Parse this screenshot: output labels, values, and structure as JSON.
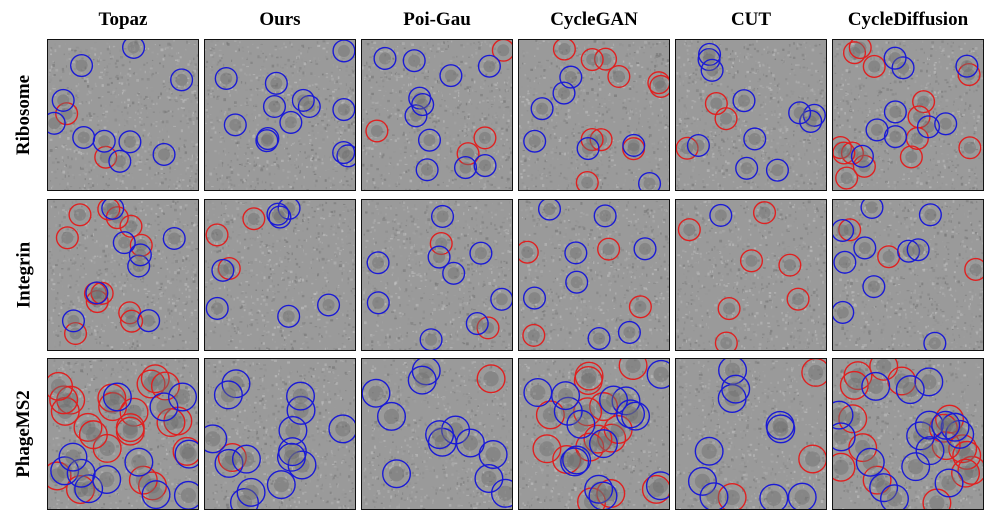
{
  "columns": [
    "Topaz",
    "Ours",
    "Poi-Gau",
    "CycleGAN",
    "CUT",
    "CycleDiffusion"
  ],
  "rows": [
    "Ribosome",
    "Integrin",
    "PhageMS2"
  ],
  "colors": {
    "true_positive": "#1a1ad6",
    "false_positive": "#e02020",
    "background": "#9a9a9a"
  },
  "circle_density": [
    {
      "row": "Ribosome",
      "blue": [
        10,
        13,
        11,
        7,
        11,
        9
      ],
      "red": [
        2,
        0,
        4,
        10,
        3,
        14
      ]
    },
    {
      "row": "Integrin",
      "blue": [
        8,
        7,
        9,
        8,
        1,
        10
      ],
      "red": [
        12,
        3,
        2,
        4,
        7,
        3
      ]
    },
    {
      "row": "PhageMS2",
      "blue": [
        12,
        15,
        12,
        15,
        10,
        16
      ],
      "red": [
        22,
        1,
        1,
        15,
        3,
        16
      ]
    }
  ]
}
